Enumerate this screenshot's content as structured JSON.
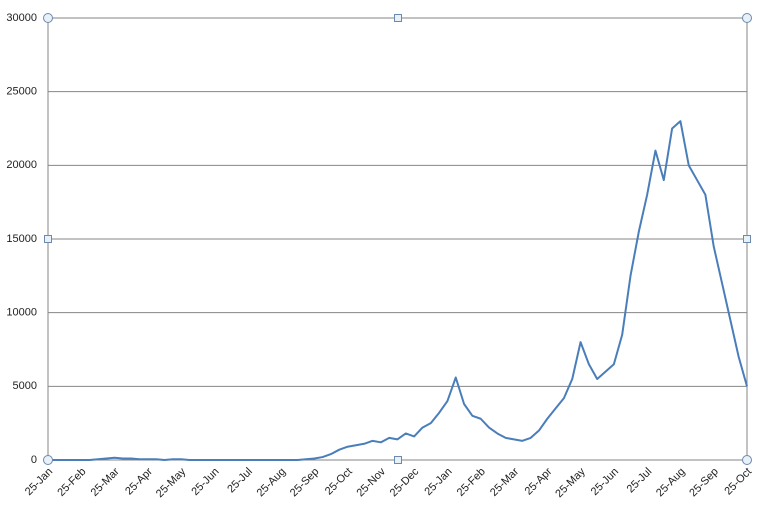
{
  "chart_data": {
    "type": "line",
    "categories": [
      "25-Jan",
      null,
      null,
      null,
      "25-Feb",
      null,
      null,
      null,
      "25-Mar",
      null,
      null,
      null,
      "25-Apr",
      null,
      null,
      null,
      "25-May",
      null,
      null,
      null,
      "25-Jun",
      null,
      null,
      null,
      "25-Jul",
      null,
      null,
      null,
      "25-Aug",
      null,
      null,
      null,
      "25-Sep",
      null,
      null,
      null,
      "25-Oct",
      null,
      null,
      null,
      "25-Nov",
      null,
      null,
      null,
      "25-Dec",
      null,
      null,
      null,
      "25-Jan",
      null,
      null,
      null,
      "25-Feb",
      null,
      null,
      null,
      "25-Mar",
      null,
      null,
      null,
      "25-Apr",
      null,
      null,
      null,
      "25-May",
      null,
      null,
      null,
      "25-Jun",
      null,
      null,
      null,
      "25-Jul",
      null,
      null,
      null,
      "25-Aug",
      null,
      null,
      null,
      "25-Sep",
      null,
      null,
      null,
      "25-Oct"
    ],
    "series": [
      {
        "color": "#4a7ebb",
        "values": [
          0,
          0,
          0,
          0,
          0,
          0,
          50,
          100,
          150,
          100,
          100,
          50,
          50,
          50,
          0,
          50,
          50,
          0,
          0,
          0,
          0,
          0,
          0,
          0,
          0,
          0,
          0,
          0,
          0,
          0,
          0,
          50,
          100,
          200,
          400,
          700,
          900,
          1000,
          1100,
          1300,
          1200,
          1500,
          1400,
          1800,
          1600,
          2200,
          2500,
          3200,
          4000,
          5600,
          3800,
          3000,
          2800,
          2200,
          1800,
          1500,
          1400,
          1300,
          1500,
          2000,
          2800,
          3500,
          4200,
          5500,
          8000,
          6500,
          5500,
          6000,
          6500,
          8500,
          12500,
          15500,
          18000,
          21000,
          19000,
          22500,
          23000,
          20000,
          19000,
          18000,
          14500,
          12000,
          9500,
          7000,
          5000
        ]
      }
    ],
    "ylim": [
      0,
      30000
    ],
    "yticks": [
      0,
      5000,
      10000,
      15000,
      20000,
      25000,
      30000
    ],
    "grid": true
  }
}
